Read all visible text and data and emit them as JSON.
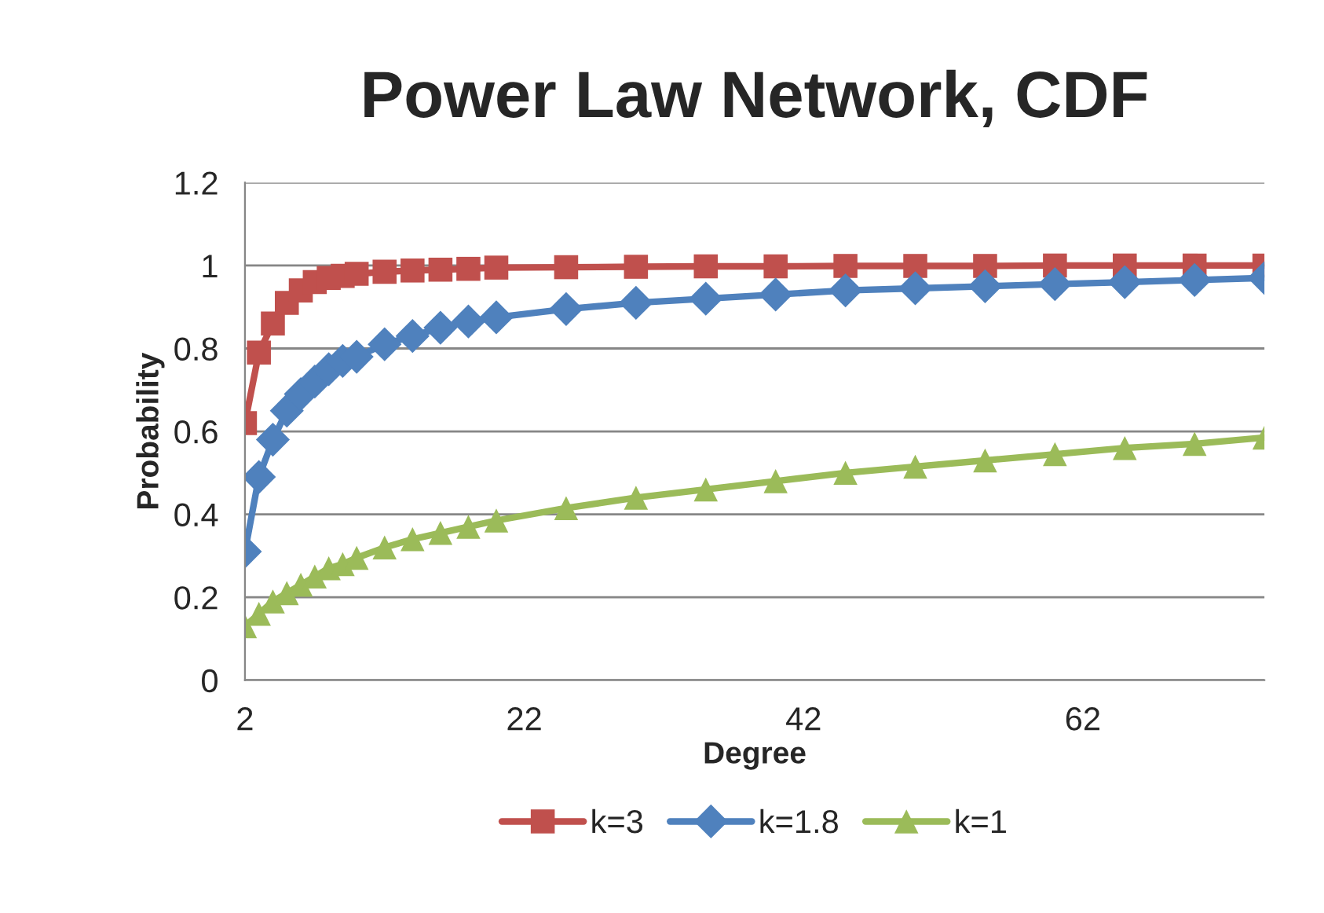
{
  "chart_data": {
    "type": "line",
    "title": "Power Law Network, CDF",
    "xlabel": "Degree",
    "ylabel": "Probability",
    "x": [
      2,
      3,
      4,
      5,
      6,
      7,
      8,
      9,
      10,
      12,
      14,
      16,
      18,
      20,
      25,
      30,
      35,
      40,
      45,
      50,
      55,
      60,
      65,
      70,
      75
    ],
    "series": [
      {
        "name": "k=3",
        "color": "#c0504d",
        "marker": "square",
        "values": [
          0.62,
          0.79,
          0.86,
          0.91,
          0.94,
          0.96,
          0.97,
          0.975,
          0.98,
          0.985,
          0.988,
          0.99,
          0.992,
          0.995,
          0.996,
          0.997,
          0.998,
          0.998,
          0.999,
          0.999,
          0.999,
          1.0,
          1.0,
          1.0,
          1.0
        ]
      },
      {
        "name": "k=1.8",
        "color": "#4f81bd",
        "marker": "diamond",
        "values": [
          0.31,
          0.49,
          0.58,
          0.65,
          0.69,
          0.72,
          0.75,
          0.77,
          0.78,
          0.81,
          0.83,
          0.85,
          0.865,
          0.875,
          0.895,
          0.91,
          0.92,
          0.93,
          0.94,
          0.945,
          0.95,
          0.955,
          0.96,
          0.965,
          0.97
        ]
      },
      {
        "name": "k=1",
        "color": "#9bbb59",
        "marker": "triangle",
        "values": [
          0.13,
          0.16,
          0.19,
          0.21,
          0.23,
          0.25,
          0.27,
          0.28,
          0.295,
          0.32,
          0.34,
          0.355,
          0.37,
          0.385,
          0.415,
          0.44,
          0.46,
          0.48,
          0.5,
          0.515,
          0.53,
          0.545,
          0.56,
          0.57,
          0.585
        ]
      }
    ],
    "xlim": [
      2,
      75
    ],
    "xticks": [
      2,
      22,
      42,
      62
    ],
    "ylim": [
      0,
      1.2
    ],
    "yticks": [
      0,
      0.2,
      0.4,
      0.6,
      0.8,
      1,
      1.2
    ],
    "grid": "y",
    "legend": "bottom",
    "line_style": "solid"
  }
}
